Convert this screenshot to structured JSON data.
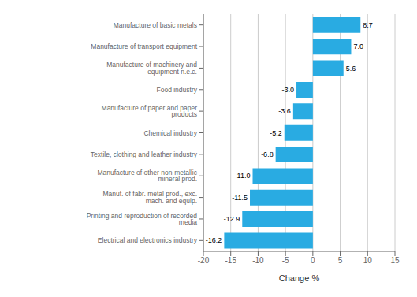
{
  "chart_data": {
    "type": "bar",
    "orientation": "horizontal",
    "categories": [
      "Electrical and electronics industry",
      "Printing and reproduction of recorded media",
      "Manuf. of fabr. metal prod., exc. mach. and equip.",
      "Manufacture of other non-metallic mineral prod.",
      "Textile, clothing and leather industry",
      "Chemical industry",
      "Manufacture of paper and paper products",
      "Food industry",
      "Manufacture of machinery and equipment n.e.c.",
      "Manufacture of transport equipment",
      "Manufacture of basic metals"
    ],
    "values": [
      -16.2,
      -12.9,
      -11.5,
      -11.0,
      -6.8,
      -5.2,
      -3.6,
      -3.0,
      5.6,
      7.0,
      8.7
    ],
    "value_labels": [
      "-16.2",
      "-12.9",
      "-11.5",
      "-11.0",
      "-6.8",
      "-5.2",
      "-3.6",
      "-3.0",
      "5.6",
      "7.0",
      "8.7"
    ],
    "data_labels": true,
    "color": "#29abe2",
    "xlabel": "Change %",
    "xlim": [
      -20,
      15
    ],
    "xticks": [
      -20,
      -15,
      -10,
      -5,
      0,
      5,
      10,
      15
    ],
    "grid": true
  }
}
